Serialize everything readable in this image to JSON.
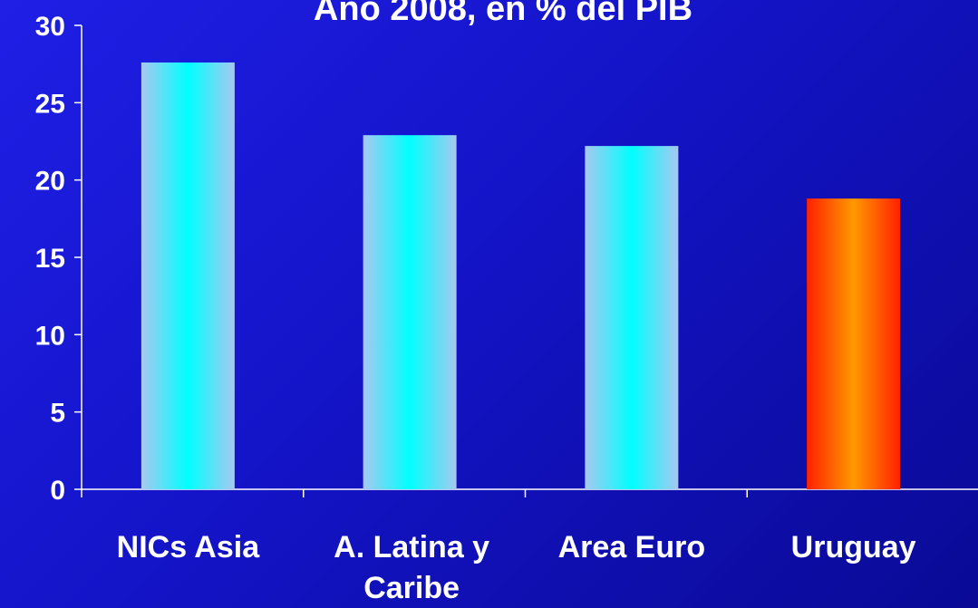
{
  "chart_data": {
    "type": "bar",
    "title": "Año 2008, en % del PIB",
    "categories": [
      [
        "NICs Asia"
      ],
      [
        "A. Latina y",
        "Caribe"
      ],
      [
        "Area Euro"
      ],
      [
        "Uruguay"
      ]
    ],
    "values": [
      27.6,
      22.9,
      22.2,
      18.8
    ],
    "highlight_index": 3,
    "ylim": [
      0,
      30
    ],
    "yticks": [
      0,
      5,
      10,
      15,
      20,
      25,
      30
    ],
    "grid": false,
    "xlabel": "",
    "ylabel": ""
  },
  "colors": {
    "background": "#1414c8",
    "bar_outer": "#a8c8f0",
    "bar_center": "#00ffff",
    "highlight_outer": "#ff2000",
    "highlight_center": "#ff9a00",
    "axis": "#ffffff",
    "text": "#ffffff"
  }
}
